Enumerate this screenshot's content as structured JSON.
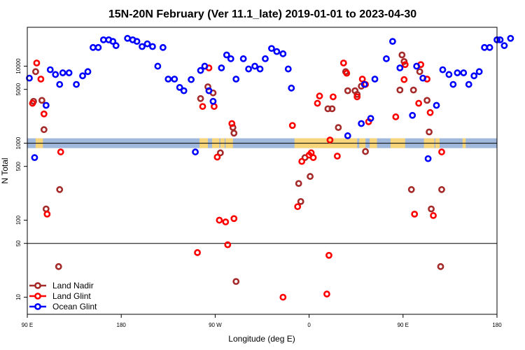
{
  "chart_data": {
    "type": "scatter",
    "title": "15N-20N February (Ver 11.1_late)   2019-01-01 to 2023-04-30",
    "xlabel": "Longitude (deg E)",
    "ylabel": "N Total",
    "x_ticks": [
      {
        "value": 90,
        "label": "90 E"
      },
      {
        "value": 180,
        "label": "180"
      },
      {
        "value": 270,
        "label": "90 W"
      },
      {
        "value": 360,
        "label": "0"
      },
      {
        "value": 450,
        "label": "90 E"
      },
      {
        "value": 540,
        "label": "180"
      }
    ],
    "x_range": [
      90,
      540
    ],
    "y_range": [
      6,
      32000
    ],
    "y_scale": "log",
    "y_ticks": [
      10,
      50,
      100,
      500,
      1000,
      5000,
      10000
    ],
    "y_reference_lines": [
      50,
      1000
    ],
    "land_strip_y": 1000,
    "colors": {
      "land_nadir": "#a52a2a",
      "land_glint": "#ff0000",
      "ocean_glint": "#0000ff",
      "ocean_strip": "#9fb8dc",
      "land_strip": "#f7d57a"
    },
    "land_spans": [
      [
        98,
        105
      ],
      [
        255,
        263
      ],
      [
        267,
        274
      ],
      [
        275,
        279
      ],
      [
        280,
        287
      ],
      [
        346,
        406
      ],
      [
        408,
        414
      ],
      [
        418,
        425
      ],
      [
        438,
        452
      ],
      [
        470,
        480
      ],
      [
        481,
        485
      ],
      [
        507,
        510
      ]
    ],
    "legend": [
      {
        "name": "Land Nadir",
        "color": "#a52a2a"
      },
      {
        "name": "Land Glint",
        "color": "#ff0000"
      },
      {
        "name": "Ocean Glint",
        "color": "#0000ff"
      }
    ],
    "series": [
      {
        "name": "Land Nadir",
        "color": "#a52a2a",
        "points": [
          [
            96,
            3500
          ],
          [
            98,
            8500
          ],
          [
            104,
            3600
          ],
          [
            106,
            1500
          ],
          [
            108,
            140
          ],
          [
            120,
            25
          ],
          [
            121,
            250
          ],
          [
            256,
            3800
          ],
          [
            263,
            5400
          ],
          [
            268,
            4500
          ],
          [
            275,
            750
          ],
          [
            287,
            1600
          ],
          [
            288,
            1350
          ],
          [
            290,
            16
          ],
          [
            350,
            300
          ],
          [
            352,
            175
          ],
          [
            356,
            650
          ],
          [
            361,
            370
          ],
          [
            378,
            2800
          ],
          [
            382,
            2800
          ],
          [
            388,
            1600
          ],
          [
            395,
            8500
          ],
          [
            397,
            4800
          ],
          [
            404,
            4800
          ],
          [
            406,
            4300
          ],
          [
            410,
            5500
          ],
          [
            414,
            780
          ],
          [
            447,
            4900
          ],
          [
            449,
            14000
          ],
          [
            451,
            11500
          ],
          [
            458,
            250
          ],
          [
            460,
            4900
          ],
          [
            466,
            8500
          ],
          [
            473,
            3600
          ],
          [
            475,
            1400
          ],
          [
            477,
            140
          ],
          [
            486,
            25
          ],
          [
            487,
            250
          ]
        ]
      },
      {
        "name": "Land Glint",
        "color": "#ff0000",
        "points": [
          [
            95,
            3300
          ],
          [
            99,
            11000
          ],
          [
            103,
            6800
          ],
          [
            106,
            2400
          ],
          [
            109,
            120
          ],
          [
            122,
            770
          ],
          [
            253,
            38
          ],
          [
            258,
            3000
          ],
          [
            264,
            9500
          ],
          [
            269,
            3000
          ],
          [
            272,
            660
          ],
          [
            274,
            100
          ],
          [
            280,
            95
          ],
          [
            282,
            48
          ],
          [
            286,
            1800
          ],
          [
            288,
            105
          ],
          [
            335,
            10
          ],
          [
            344,
            1700
          ],
          [
            349,
            150
          ],
          [
            353,
            580
          ],
          [
            360,
            700
          ],
          [
            362,
            750
          ],
          [
            364,
            650
          ],
          [
            368,
            3300
          ],
          [
            370,
            4100
          ],
          [
            377,
            11
          ],
          [
            379,
            35
          ],
          [
            380,
            1100
          ],
          [
            383,
            4000
          ],
          [
            387,
            680
          ],
          [
            393,
            11000
          ],
          [
            396,
            8100
          ],
          [
            406,
            4000
          ],
          [
            411,
            6800
          ],
          [
            414,
            5800
          ],
          [
            417,
            1900
          ],
          [
            443,
            2200
          ],
          [
            451,
            6700
          ],
          [
            452,
            10500
          ],
          [
            461,
            120
          ],
          [
            465,
            3300
          ],
          [
            467,
            10500
          ],
          [
            473,
            6800
          ],
          [
            476,
            2500
          ],
          [
            479,
            115
          ],
          [
            487,
            770
          ]
        ]
      },
      {
        "name": "Ocean Glint",
        "color": "#0000ff",
        "points": [
          [
            92,
            7000
          ],
          [
            97,
            650
          ],
          [
            108,
            3100
          ],
          [
            112,
            9000
          ],
          [
            117,
            7800
          ],
          [
            121,
            5800
          ],
          [
            124,
            8200
          ],
          [
            130,
            8200
          ],
          [
            137,
            5800
          ],
          [
            143,
            7500
          ],
          [
            148,
            8500
          ],
          [
            153,
            17500
          ],
          [
            158,
            17500
          ],
          [
            163,
            22000
          ],
          [
            168,
            22000
          ],
          [
            172,
            21000
          ],
          [
            175,
            18500
          ],
          [
            186,
            23000
          ],
          [
            191,
            22000
          ],
          [
            195,
            21000
          ],
          [
            200,
            18000
          ],
          [
            205,
            19500
          ],
          [
            210,
            18000
          ],
          [
            215,
            10000
          ],
          [
            220,
            17500
          ],
          [
            225,
            6800
          ],
          [
            231,
            6800
          ],
          [
            236,
            5300
          ],
          [
            240,
            4800
          ],
          [
            247,
            6700
          ],
          [
            251,
            770
          ],
          [
            256,
            8800
          ],
          [
            260,
            10000
          ],
          [
            264,
            4800
          ],
          [
            268,
            3500
          ],
          [
            276,
            9500
          ],
          [
            281,
            14000
          ],
          [
            285,
            12500
          ],
          [
            290,
            6800
          ],
          [
            297,
            12500
          ],
          [
            302,
            9200
          ],
          [
            308,
            10000
          ],
          [
            313,
            9200
          ],
          [
            318,
            12500
          ],
          [
            324,
            17000
          ],
          [
            329,
            15500
          ],
          [
            335,
            14500
          ],
          [
            340,
            9200
          ],
          [
            343,
            5200
          ],
          [
            397,
            1250
          ],
          [
            410,
            1800
          ],
          [
            413,
            5800
          ],
          [
            419,
            2100
          ],
          [
            423,
            6800
          ],
          [
            434,
            12500
          ],
          [
            440,
            21000
          ],
          [
            447,
            9500
          ],
          [
            459,
            2300
          ],
          [
            463,
            10000
          ],
          [
            469,
            7000
          ],
          [
            474,
            630
          ],
          [
            482,
            3100
          ],
          [
            488,
            9000
          ],
          [
            494,
            7800
          ],
          [
            498,
            5800
          ],
          [
            502,
            8200
          ],
          [
            508,
            8200
          ],
          [
            513,
            5800
          ],
          [
            518,
            7500
          ],
          [
            523,
            8500
          ],
          [
            528,
            17500
          ],
          [
            533,
            17500
          ],
          [
            540,
            22000
          ],
          [
            543,
            22000
          ],
          [
            547,
            18500
          ],
          [
            553,
            23000
          ]
        ]
      }
    ]
  }
}
